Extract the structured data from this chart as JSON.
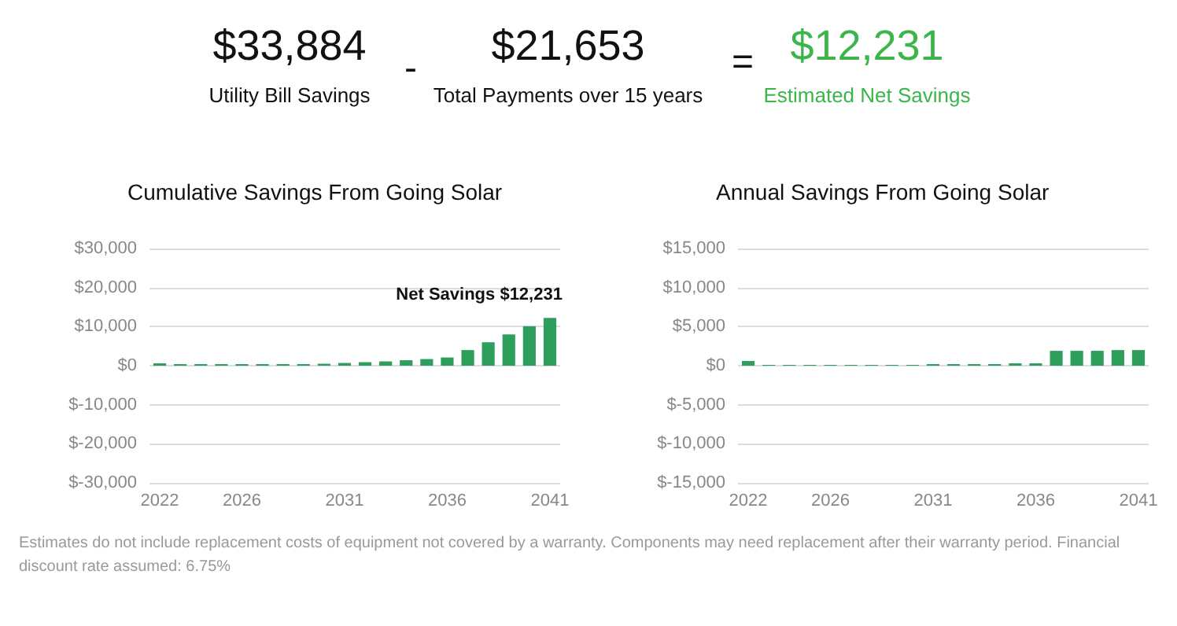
{
  "chart_data": [
    {
      "type": "other",
      "color": "#3cb54a",
      "annotations": [
        "$33,884",
        "Utility Bill Savings",
        "-",
        "$21,653",
        "Total Payments over 15 years",
        "=",
        "$12,231",
        "Estimated Net Savings",
        "Estimates do not include replacement costs of equipment not covered by a warranty. Components may need replacement after their warranty period. Financial discount rate assumed: 6.75%"
      ]
    },
    {
      "type": "bar",
      "title": "Cumulative Savings From Going Solar",
      "categories": [
        "2022",
        null,
        null,
        null,
        "2026",
        null,
        null,
        null,
        null,
        "2031",
        null,
        null,
        null,
        null,
        "2036",
        null,
        null,
        null,
        null,
        "2041"
      ],
      "series": [
        {
          "color": "#2e9e5b",
          "values": [
            600,
            400,
            400,
            400,
            400,
            400,
            400,
            400,
            500,
            700,
            900,
            1100,
            1400,
            1700,
            2100,
            4000,
            6000,
            8000,
            10100,
            12231
          ]
        }
      ],
      "ylim": [
        -30000,
        30000
      ],
      "yticks": [
        {
          "value": -30000,
          "label": "$-30,000"
        },
        {
          "value": -20000,
          "label": "$-20,000"
        },
        {
          "value": -10000,
          "label": "$-10,000"
        },
        {
          "value": 0,
          "label": "$0"
        },
        {
          "value": 10000,
          "label": "$10,000"
        },
        {
          "value": 20000,
          "label": "$20,000"
        },
        {
          "value": 30000,
          "label": "$30,000"
        }
      ],
      "grid": "y",
      "annotations": [
        {
          "text": "Net Savings $12,231",
          "x": "2041",
          "y": 12231
        }
      ]
    },
    {
      "type": "bar",
      "title": "Annual Savings From Going Solar",
      "categories": [
        "2022",
        null,
        null,
        null,
        "2026",
        null,
        null,
        null,
        null,
        "2031",
        null,
        null,
        null,
        null,
        "2036",
        null,
        null,
        null,
        null,
        "2041"
      ],
      "series": [
        {
          "color": "#2e9e5b",
          "values": [
            600,
            100,
            100,
            100,
            100,
            100,
            100,
            100,
            100,
            200,
            200,
            200,
            200,
            300,
            300,
            1900,
            1900,
            1900,
            2000,
            2000
          ]
        }
      ],
      "ylim": [
        -15000,
        15000
      ],
      "yticks": [
        {
          "value": -15000,
          "label": "$-15,000"
        },
        {
          "value": -10000,
          "label": "$-10,000"
        },
        {
          "value": -5000,
          "label": "$-5,000"
        },
        {
          "value": 0,
          "label": "$0"
        },
        {
          "value": 5000,
          "label": "$5,000"
        },
        {
          "value": 10000,
          "label": "$10,000"
        },
        {
          "value": 15000,
          "label": "$15,000"
        }
      ],
      "grid": "y"
    }
  ]
}
